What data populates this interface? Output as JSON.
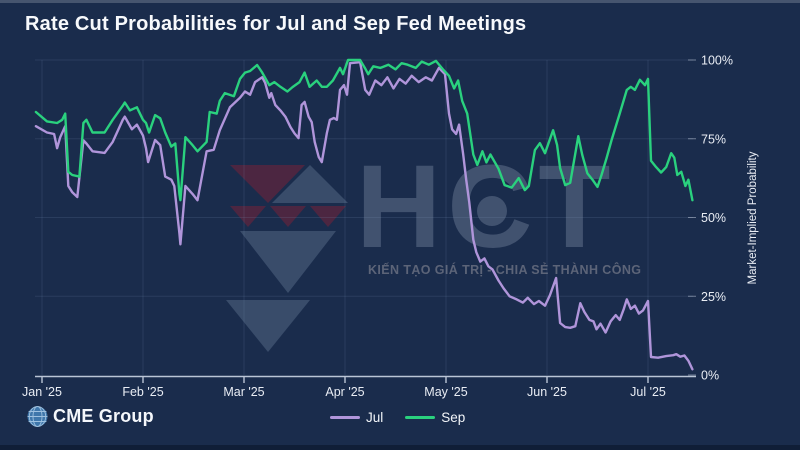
{
  "title": "Rate Cut Probabilities for Jul and Sep Fed Meetings",
  "y_axis": {
    "label": "Market-Implied Probability",
    "tick_values": [
      0,
      25,
      50,
      75,
      100
    ],
    "tick_labels": [
      "0%",
      "25%",
      "50%",
      "75%",
      "100%"
    ]
  },
  "x_axis": {
    "tick_labels": [
      "Jan '25",
      "Feb '25",
      "Mar '25",
      "Apr '25",
      "May '25",
      "Jun '25",
      "Jul '25"
    ]
  },
  "legend": [
    {
      "label": "Jul",
      "color": "#b095da"
    },
    {
      "label": "Sep",
      "color": "#2ad17e"
    }
  ],
  "branding": {
    "cme": "CME Group",
    "globe_color": "#3f77ab"
  },
  "watermark": {
    "text": "HCT",
    "slogan": "KIẾN TẠO GIÁ TRỊ - CHIA SẺ THÀNH CÔNG",
    "maroon": "rgba(125,32,54,0.5)",
    "slate": "rgba(95,115,145,0.45)"
  },
  "colors": {
    "background": "#1a2c4c",
    "grid": "rgba(125,148,182,0.17)",
    "axis": "#bac5d6",
    "jul_line": "#b095da",
    "sep_line": "#2ad17e"
  },
  "chart_data": {
    "type": "line",
    "title": "Rate Cut Probabilities for Jul and Sep Fed Meetings",
    "xlabel": "",
    "ylabel": "Market-Implied Probability",
    "x_unit": "months since Jan 1 2025",
    "ylim": [
      0,
      100
    ],
    "xlim": [
      -0.1,
      6.5
    ],
    "grid": true,
    "legend_position": "bottom-center",
    "series": [
      {
        "name": "Jul",
        "color": "#b095da",
        "points": [
          [
            -0.06,
            79
          ],
          [
            0.05,
            77
          ],
          [
            0.12,
            76.5
          ],
          [
            0.15,
            72
          ],
          [
            0.18,
            75.5
          ],
          [
            0.23,
            79
          ],
          [
            0.26,
            60
          ],
          [
            0.3,
            58
          ],
          [
            0.35,
            56.5
          ],
          [
            0.41,
            74.5
          ],
          [
            0.44,
            73.5
          ],
          [
            0.5,
            71
          ],
          [
            0.62,
            70.5
          ],
          [
            0.7,
            74
          ],
          [
            0.8,
            81
          ],
          [
            0.82,
            82
          ],
          [
            0.89,
            78
          ],
          [
            0.94,
            79.5
          ],
          [
            1.0,
            76
          ],
          [
            1.03,
            72
          ],
          [
            1.05,
            67.6
          ],
          [
            1.12,
            74.6
          ],
          [
            1.17,
            73
          ],
          [
            1.22,
            63
          ],
          [
            1.28,
            62
          ],
          [
            1.31,
            60
          ],
          [
            1.36,
            45
          ],
          [
            1.37,
            41.5
          ],
          [
            1.42,
            60
          ],
          [
            1.49,
            57.5
          ],
          [
            1.54,
            55.5
          ],
          [
            1.63,
            71
          ],
          [
            1.7,
            71.5
          ],
          [
            1.76,
            77.7
          ],
          [
            1.86,
            85
          ],
          [
            1.96,
            88
          ],
          [
            2.01,
            90
          ],
          [
            2.06,
            89
          ],
          [
            2.11,
            93
          ],
          [
            2.18,
            94.5
          ],
          [
            2.21,
            92.7
          ],
          [
            2.25,
            88
          ],
          [
            2.27,
            89.5
          ],
          [
            2.31,
            85.7
          ],
          [
            2.36,
            84
          ],
          [
            2.41,
            82
          ],
          [
            2.46,
            78.7
          ],
          [
            2.5,
            76.7
          ],
          [
            2.54,
            75.2
          ],
          [
            2.57,
            85.7
          ],
          [
            2.6,
            86.7
          ],
          [
            2.64,
            82
          ],
          [
            2.67,
            80.3
          ],
          [
            2.7,
            74
          ],
          [
            2.74,
            69.2
          ],
          [
            2.77,
            67.6
          ],
          [
            2.82,
            76.7
          ],
          [
            2.85,
            81
          ],
          [
            2.89,
            81.6
          ],
          [
            2.92,
            81
          ],
          [
            2.95,
            90.5
          ],
          [
            2.99,
            92
          ],
          [
            3.02,
            89
          ],
          [
            3.05,
            99
          ],
          [
            3.15,
            99.3
          ],
          [
            3.2,
            90.5
          ],
          [
            3.24,
            89
          ],
          [
            3.3,
            93.5
          ],
          [
            3.36,
            92
          ],
          [
            3.42,
            94.5
          ],
          [
            3.48,
            91
          ],
          [
            3.54,
            94
          ],
          [
            3.6,
            92.5
          ],
          [
            3.66,
            95
          ],
          [
            3.73,
            93
          ],
          [
            3.8,
            94.5
          ],
          [
            3.86,
            93.5
          ],
          [
            3.93,
            97.5
          ],
          [
            3.99,
            95.5
          ],
          [
            4.03,
            83
          ],
          [
            4.06,
            78
          ],
          [
            4.1,
            76.5
          ],
          [
            4.13,
            79.5
          ],
          [
            4.17,
            70
          ],
          [
            4.2,
            62
          ],
          [
            4.23,
            55
          ],
          [
            4.27,
            43
          ],
          [
            4.3,
            39
          ],
          [
            4.34,
            36
          ],
          [
            4.38,
            37
          ],
          [
            4.42,
            34.5
          ],
          [
            4.46,
            33.5
          ],
          [
            4.52,
            30
          ],
          [
            4.57,
            27.5
          ],
          [
            4.63,
            25
          ],
          [
            4.7,
            24
          ],
          [
            4.76,
            23
          ],
          [
            4.81,
            24.5
          ],
          [
            4.87,
            22.5
          ],
          [
            4.92,
            23.5
          ],
          [
            4.98,
            22
          ],
          [
            5.03,
            25.4
          ],
          [
            5.09,
            30.8
          ],
          [
            5.13,
            16.5
          ],
          [
            5.18,
            15.2
          ],
          [
            5.23,
            15
          ],
          [
            5.28,
            15.5
          ],
          [
            5.33,
            22.8
          ],
          [
            5.37,
            20
          ],
          [
            5.42,
            17.5
          ],
          [
            5.46,
            17
          ],
          [
            5.49,
            14.5
          ],
          [
            5.53,
            16.3
          ],
          [
            5.58,
            13.5
          ],
          [
            5.63,
            17
          ],
          [
            5.68,
            19
          ],
          [
            5.72,
            17.5
          ],
          [
            5.76,
            21
          ],
          [
            5.79,
            24
          ],
          [
            5.83,
            21
          ],
          [
            5.87,
            22
          ],
          [
            5.91,
            19.5
          ],
          [
            5.95,
            20.5
          ],
          [
            6.0,
            23.5
          ],
          [
            6.03,
            5.7
          ],
          [
            6.1,
            5.5
          ],
          [
            6.18,
            6
          ],
          [
            6.25,
            6.3
          ],
          [
            6.28,
            6.6
          ],
          [
            6.32,
            5.8
          ],
          [
            6.36,
            6.2
          ],
          [
            6.4,
            4.5
          ],
          [
            6.44,
            1.8
          ]
        ]
      },
      {
        "name": "Sep",
        "color": "#2ad17e",
        "points": [
          [
            -0.06,
            83.5
          ],
          [
            0.05,
            80.5
          ],
          [
            0.15,
            80
          ],
          [
            0.2,
            81
          ],
          [
            0.23,
            83
          ],
          [
            0.26,
            64.5
          ],
          [
            0.3,
            63.5
          ],
          [
            0.37,
            63
          ],
          [
            0.41,
            80
          ],
          [
            0.44,
            81
          ],
          [
            0.5,
            77
          ],
          [
            0.62,
            77
          ],
          [
            0.7,
            81
          ],
          [
            0.8,
            85.5
          ],
          [
            0.82,
            86.5
          ],
          [
            0.87,
            84
          ],
          [
            0.94,
            85
          ],
          [
            1.0,
            81
          ],
          [
            1.03,
            80
          ],
          [
            1.06,
            77
          ],
          [
            1.12,
            82.5
          ],
          [
            1.17,
            81.5
          ],
          [
            1.22,
            77
          ],
          [
            1.28,
            72.5
          ],
          [
            1.32,
            73.5
          ],
          [
            1.36,
            57.5
          ],
          [
            1.37,
            55.5
          ],
          [
            1.42,
            75.5
          ],
          [
            1.49,
            73
          ],
          [
            1.54,
            71
          ],
          [
            1.63,
            74
          ],
          [
            1.66,
            83.5
          ],
          [
            1.73,
            83
          ],
          [
            1.76,
            87
          ],
          [
            1.81,
            89.5
          ],
          [
            1.9,
            88.5
          ],
          [
            1.96,
            94
          ],
          [
            2.01,
            96
          ],
          [
            2.06,
            96.5
          ],
          [
            2.13,
            98.4
          ],
          [
            2.18,
            96
          ],
          [
            2.25,
            92
          ],
          [
            2.3,
            93
          ],
          [
            2.36,
            91.5
          ],
          [
            2.43,
            90
          ],
          [
            2.48,
            91.4
          ],
          [
            2.55,
            93
          ],
          [
            2.6,
            96
          ],
          [
            2.65,
            91.5
          ],
          [
            2.72,
            93.5
          ],
          [
            2.77,
            91.5
          ],
          [
            2.82,
            91.5
          ],
          [
            2.88,
            93.5
          ],
          [
            2.95,
            97.5
          ],
          [
            2.98,
            95.5
          ],
          [
            3.03,
            100
          ],
          [
            3.15,
            100
          ],
          [
            3.2,
            97.3
          ],
          [
            3.23,
            95.5
          ],
          [
            3.28,
            98
          ],
          [
            3.35,
            97.5
          ],
          [
            3.43,
            98.5
          ],
          [
            3.5,
            97
          ],
          [
            3.56,
            99
          ],
          [
            3.62,
            98.5
          ],
          [
            3.7,
            97.5
          ],
          [
            3.76,
            99.5
          ],
          [
            3.83,
            98.5
          ],
          [
            3.9,
            99.7
          ],
          [
            3.97,
            97
          ],
          [
            4.03,
            95
          ],
          [
            4.08,
            91
          ],
          [
            4.12,
            93.5
          ],
          [
            4.16,
            87
          ],
          [
            4.21,
            83
          ],
          [
            4.27,
            70
          ],
          [
            4.31,
            66.7
          ],
          [
            4.36,
            71
          ],
          [
            4.4,
            67.5
          ],
          [
            4.44,
            70
          ],
          [
            4.52,
            65.5
          ],
          [
            4.58,
            60.3
          ],
          [
            4.65,
            59.5
          ],
          [
            4.72,
            62.5
          ],
          [
            4.78,
            58.7
          ],
          [
            4.82,
            60
          ],
          [
            4.88,
            71.4
          ],
          [
            4.93,
            73.6
          ],
          [
            4.98,
            70.4
          ],
          [
            5.06,
            77.7
          ],
          [
            5.1,
            73
          ],
          [
            5.13,
            65.7
          ],
          [
            5.18,
            60.3
          ],
          [
            5.23,
            61
          ],
          [
            5.31,
            75.8
          ],
          [
            5.35,
            69.8
          ],
          [
            5.4,
            64
          ],
          [
            5.45,
            62
          ],
          [
            5.5,
            59.7
          ],
          [
            5.54,
            63.5
          ],
          [
            5.59,
            68.9
          ],
          [
            5.64,
            74.6
          ],
          [
            5.72,
            83
          ],
          [
            5.79,
            90.5
          ],
          [
            5.83,
            91.5
          ],
          [
            5.87,
            90.5
          ],
          [
            5.92,
            93.7
          ],
          [
            5.97,
            92
          ],
          [
            6.0,
            94
          ],
          [
            6.03,
            68
          ],
          [
            6.08,
            66
          ],
          [
            6.13,
            64.3
          ],
          [
            6.18,
            66
          ],
          [
            6.23,
            70.4
          ],
          [
            6.26,
            69
          ],
          [
            6.29,
            63.5
          ],
          [
            6.33,
            64.5
          ],
          [
            6.37,
            60
          ],
          [
            6.4,
            62
          ],
          [
            6.44,
            55.5
          ]
        ]
      }
    ]
  }
}
